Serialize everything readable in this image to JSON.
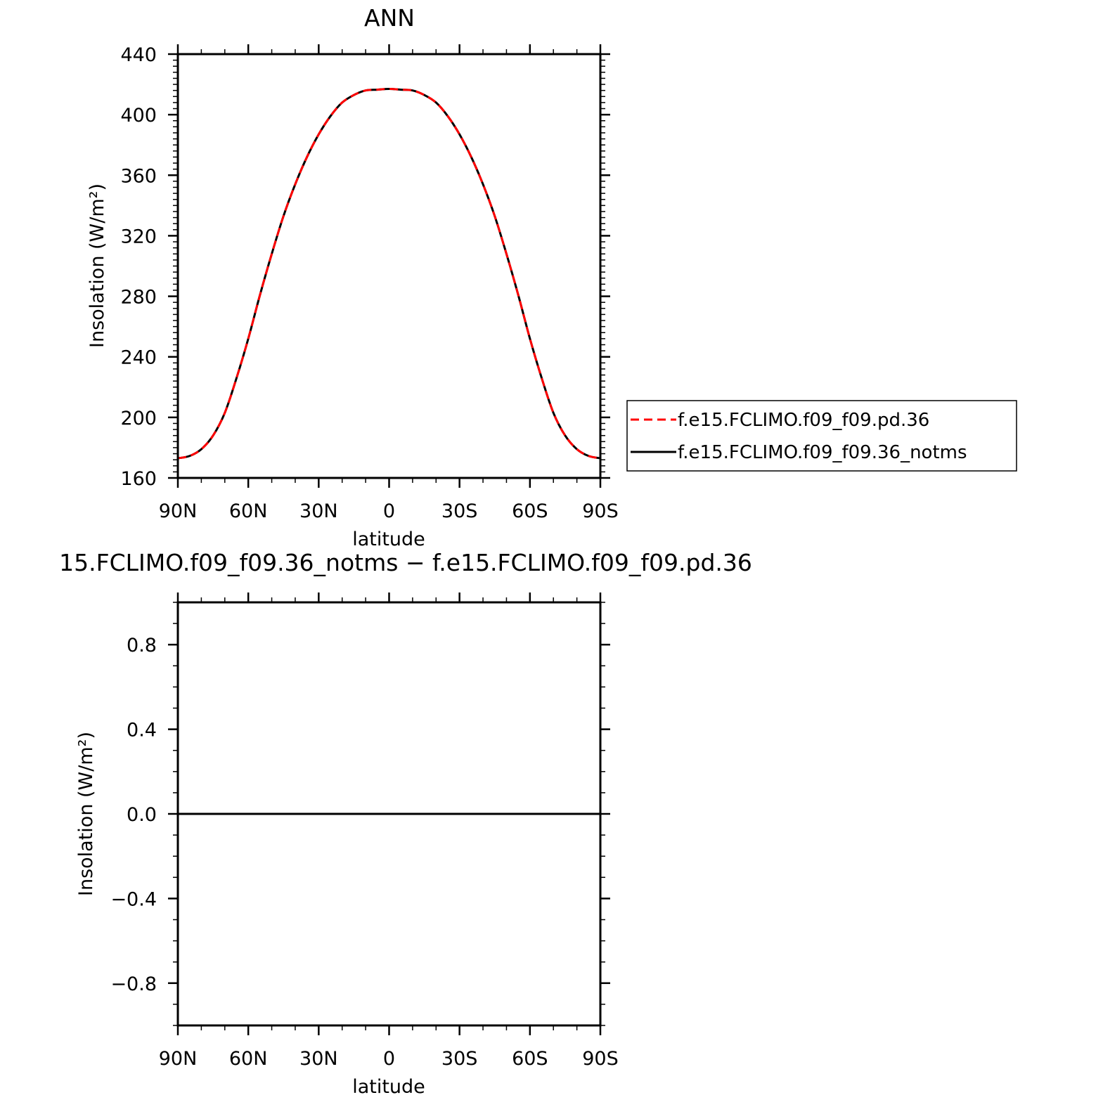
{
  "chart_data": [
    {
      "type": "line",
      "title": "ANN",
      "xlabel": "latitude",
      "ylabel": "Insolation  (W/m²)",
      "xlim": [
        -90,
        90
      ],
      "ylim": [
        160,
        440
      ],
      "x_ticks": [
        -90,
        -60,
        -30,
        0,
        30,
        60,
        90
      ],
      "x_tick_labels": [
        "90N",
        "60N",
        "30N",
        "0",
        "30S",
        "60S",
        "90S"
      ],
      "y_ticks": [
        160,
        200,
        240,
        280,
        320,
        360,
        400,
        440
      ],
      "y_tick_labels": [
        "160",
        "200",
        "240",
        "280",
        "320",
        "360",
        "400",
        "440"
      ],
      "x": [
        -90,
        -85,
        -80,
        -75,
        -70,
        -65,
        -60,
        -55,
        -50,
        -45,
        -40,
        -35,
        -30,
        -25,
        -20,
        -15,
        -10,
        -5,
        0,
        5,
        10,
        15,
        20,
        25,
        30,
        35,
        40,
        45,
        50,
        55,
        60,
        65,
        70,
        75,
        80,
        85,
        90
      ],
      "series": [
        {
          "name": "f.e15.FCLIMO.f09_f09.pd.36",
          "color": "#ff0000",
          "dash": "dashed",
          "values": [
            173,
            174.5,
            179,
            188,
            203,
            226,
            252,
            281,
            308,
            333,
            354,
            372,
            387,
            399,
            408,
            413,
            416,
            416.5,
            417,
            416.5,
            416,
            413,
            408,
            399,
            387,
            372,
            354,
            333,
            308,
            281,
            252,
            226,
            203,
            188,
            179,
            174.5,
            173
          ]
        },
        {
          "name": "f.e15.FCLIMO.f09_f09.36_notms",
          "color": "#000000",
          "dash": "solid",
          "values": [
            173,
            174.5,
            179,
            188,
            203,
            226,
            252,
            281,
            308,
            333,
            354,
            372,
            387,
            399,
            408,
            413,
            416,
            416.5,
            417,
            416.5,
            416,
            413,
            408,
            399,
            387,
            372,
            354,
            333,
            308,
            281,
            252,
            226,
            203,
            188,
            179,
            174.5,
            173
          ]
        }
      ]
    },
    {
      "type": "line",
      "title": "15.FCLIMO.f09_f09.36_notms − f.e15.FCLIMO.f09_f09.pd.36",
      "xlabel": "latitude",
      "ylabel": "Insolation  (W/m²)",
      "xlim": [
        -90,
        90
      ],
      "ylim": [
        -1,
        1
      ],
      "x_ticks": [
        -90,
        -60,
        -30,
        0,
        30,
        60,
        90
      ],
      "x_tick_labels": [
        "90N",
        "60N",
        "30N",
        "0",
        "30S",
        "60S",
        "90S"
      ],
      "y_ticks": [
        -0.8,
        -0.4,
        0.0,
        0.4,
        0.8
      ],
      "y_tick_labels": [
        "−0.8",
        "−0.4",
        "0.0",
        "0.4",
        "0.8"
      ],
      "x": [
        -90,
        90
      ],
      "series": [
        {
          "color": "#000000",
          "dash": "solid",
          "values": [
            0,
            0
          ]
        }
      ]
    }
  ]
}
